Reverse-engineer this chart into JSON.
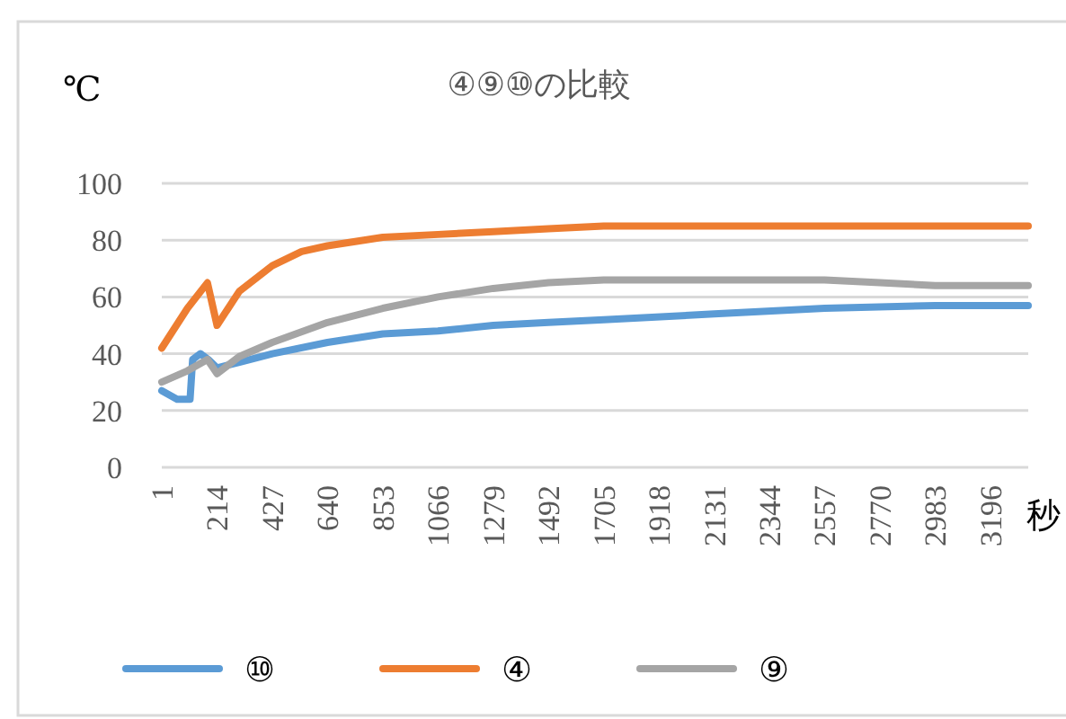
{
  "chart_data": {
    "type": "line",
    "title": "④⑨⑩の比較",
    "ylabel": "℃",
    "xlabel": "秒",
    "xlim": [
      1,
      3342
    ],
    "ylim": [
      0,
      100
    ],
    "xticks": [
      1,
      214,
      427,
      640,
      853,
      1066,
      1279,
      1492,
      1705,
      1918,
      2131,
      2344,
      2557,
      2770,
      2983,
      3196
    ],
    "yticks": [
      0,
      20,
      40,
      60,
      80,
      100
    ],
    "grid": "y",
    "legend": "bottom",
    "series": [
      {
        "name": "⑩",
        "color": "#5b9bd5",
        "x": [
          1,
          60,
          110,
          120,
          150,
          180,
          214,
          300,
          427,
          640,
          853,
          1066,
          1279,
          1492,
          1705,
          2131,
          2557,
          2983,
          3342
        ],
        "values": [
          27,
          24,
          24,
          38,
          40,
          38,
          35,
          37,
          40,
          44,
          47,
          48,
          50,
          51,
          52,
          54,
          56,
          57,
          57
        ]
      },
      {
        "name": "④",
        "color": "#ed7d31",
        "x": [
          1,
          100,
          177,
          214,
          300,
          427,
          540,
          640,
          853,
          1066,
          1279,
          1492,
          1705,
          2131,
          2557,
          2983,
          3342
        ],
        "values": [
          42,
          56,
          65,
          50,
          62,
          71,
          76,
          78,
          81,
          82,
          83,
          84,
          85,
          85,
          85,
          85,
          85
        ]
      },
      {
        "name": "⑨",
        "color": "#a5a5a5",
        "x": [
          1,
          100,
          177,
          214,
          300,
          427,
          640,
          853,
          1066,
          1279,
          1492,
          1705,
          2131,
          2557,
          2770,
          2983,
          3342
        ],
        "values": [
          30,
          34,
          38,
          33,
          39,
          44,
          51,
          56,
          60,
          63,
          65,
          66,
          66,
          66,
          65,
          64,
          64
        ]
      }
    ]
  }
}
